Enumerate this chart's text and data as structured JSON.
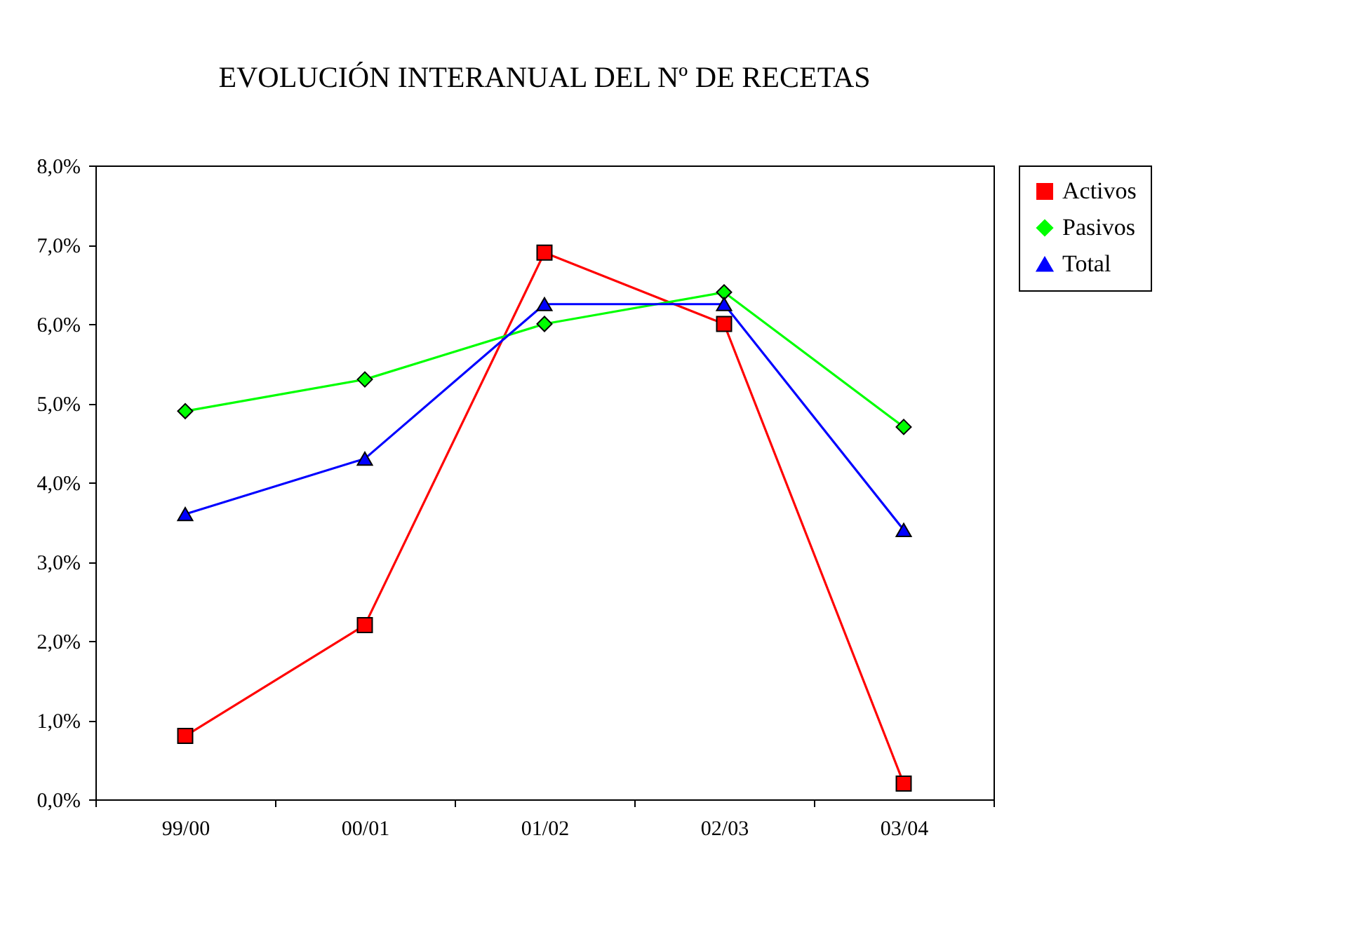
{
  "chart_data": {
    "type": "line",
    "title": "EVOLUCIÓN INTERANUAL DEL Nº DE RECETAS",
    "categories": [
      "99/00",
      "00/01",
      "01/02",
      "02/03",
      "03/04"
    ],
    "series": [
      {
        "name": "Activos",
        "color": "#ff0000",
        "marker": "square",
        "values": [
          0.8,
          2.2,
          6.9,
          6.0,
          0.2
        ]
      },
      {
        "name": "Pasivos",
        "color": "#00ff00",
        "marker": "diamond",
        "values": [
          4.9,
          5.3,
          6.0,
          6.4,
          4.7
        ]
      },
      {
        "name": "Total",
        "color": "#0000ff",
        "marker": "triangle",
        "values": [
          3.6,
          4.3,
          6.25,
          6.25,
          3.4
        ]
      }
    ],
    "ylim": [
      0,
      8
    ],
    "yticks": [
      {
        "value": 0,
        "label": "0,0%"
      },
      {
        "value": 1,
        "label": "1,0%"
      },
      {
        "value": 2,
        "label": "2,0%"
      },
      {
        "value": 3,
        "label": "3,0%"
      },
      {
        "value": 4,
        "label": "4,0%"
      },
      {
        "value": 5,
        "label": "5,0%"
      },
      {
        "value": 6,
        "label": "6,0%"
      },
      {
        "value": 7,
        "label": "7,0%"
      },
      {
        "value": 8,
        "label": "8,0%"
      }
    ],
    "grid": false,
    "legend": "right",
    "line_style": "solid"
  }
}
